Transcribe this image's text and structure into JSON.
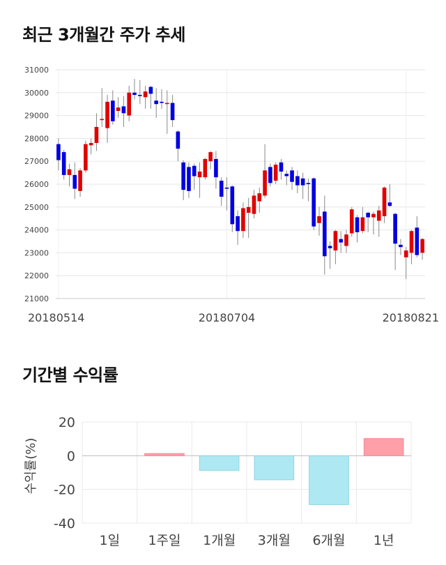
{
  "sections": {
    "price_title": "최근 3개월간 주가 추세",
    "returns_title": "기간별 수익률"
  },
  "chart_data": [
    {
      "type": "candlestick",
      "y_ticks": [
        "31000",
        "30000",
        "29000",
        "28000",
        "27000",
        "26000",
        "25000",
        "24000",
        "23000",
        "22000",
        "21000"
      ],
      "ylim": [
        21000,
        31000
      ],
      "x_ticks": [
        {
          "label": "20180514",
          "index": 0
        },
        {
          "label": "20180704",
          "index": 31
        },
        {
          "label": "20180821",
          "index": 64
        }
      ],
      "up_color": "#e00000",
      "down_color": "#0000e0",
      "candles": [
        [
          27750,
          27050,
          28000,
          26600
        ],
        [
          27400,
          26400,
          27500,
          26200
        ],
        [
          26400,
          26650,
          26900,
          25900
        ],
        [
          26400,
          25800,
          26950,
          25350
        ],
        [
          25700,
          26600,
          26700,
          25450
        ],
        [
          26600,
          27750,
          27900,
          26500
        ],
        [
          27700,
          27800,
          28000,
          27300
        ],
        [
          27800,
          28500,
          29100,
          27450
        ],
        [
          28800,
          28850,
          30200,
          28500
        ],
        [
          28450,
          29600,
          29900,
          27800
        ],
        [
          29650,
          28750,
          30100,
          28600
        ],
        [
          29200,
          29350,
          29800,
          28900
        ],
        [
          29400,
          29100,
          29850,
          28500
        ],
        [
          29000,
          30000,
          30300,
          28750
        ],
        [
          30000,
          29900,
          30600,
          29700
        ],
        [
          29900,
          29850,
          30550,
          29500
        ],
        [
          29800,
          30050,
          30300,
          29300
        ],
        [
          30250,
          29950,
          30300,
          29300
        ],
        [
          29650,
          29500,
          30200,
          28900
        ],
        [
          29600,
          29550,
          30150,
          29300
        ],
        [
          29500,
          29550,
          30100,
          28200
        ],
        [
          29550,
          28800,
          29900,
          28500
        ],
        [
          28300,
          27550,
          28350,
          27000
        ],
        [
          26950,
          25750,
          27050,
          25300
        ],
        [
          26750,
          25700,
          26950,
          25400
        ],
        [
          26800,
          26350,
          26900,
          25750
        ],
        [
          26300,
          26550,
          26950,
          25400
        ],
        [
          26300,
          27100,
          27150,
          26200
        ],
        [
          27000,
          27400,
          27450,
          26650
        ],
        [
          27100,
          26300,
          27450,
          25800
        ],
        [
          26150,
          25450,
          26300,
          25050
        ],
        [
          25850,
          25800,
          26300,
          24850
        ],
        [
          25900,
          24250,
          25950,
          23900
        ],
        [
          24600,
          23950,
          24850,
          23350
        ],
        [
          23950,
          24950,
          25200,
          23650
        ],
        [
          24750,
          25000,
          25400,
          23650
        ],
        [
          24700,
          25500,
          25750,
          24500
        ],
        [
          25250,
          25600,
          25850,
          24750
        ],
        [
          25500,
          26600,
          27750,
          25400
        ],
        [
          26750,
          26050,
          26900,
          25900
        ],
        [
          26150,
          26850,
          26950,
          26000
        ],
        [
          26950,
          26550,
          27100,
          26200
        ],
        [
          26450,
          26350,
          26600,
          25950
        ],
        [
          26600,
          26100,
          26750,
          25750
        ],
        [
          26350,
          25950,
          26600,
          25600
        ],
        [
          26250,
          25950,
          26500,
          25350
        ],
        [
          26050,
          26000,
          26250,
          25250
        ],
        [
          26250,
          24150,
          26300,
          24000
        ],
        [
          24300,
          24600,
          25000,
          23750
        ],
        [
          24800,
          22850,
          25500,
          22050
        ],
        [
          23300,
          23200,
          23500,
          22300
        ],
        [
          23100,
          23950,
          24000,
          22500
        ],
        [
          23600,
          23450,
          23950,
          23000
        ],
        [
          23300,
          23800,
          24000,
          23000
        ],
        [
          23850,
          24900,
          25000,
          23700
        ],
        [
          24550,
          23900,
          24650,
          23450
        ],
        [
          23950,
          24550,
          25000,
          23850
        ],
        [
          24750,
          24550,
          24800,
          23900
        ],
        [
          24550,
          24700,
          24800,
          23800
        ],
        [
          24400,
          24850,
          25050,
          23700
        ],
        [
          24600,
          25850,
          25900,
          24300
        ],
        [
          25200,
          25050,
          26000,
          25000
        ],
        [
          24700,
          23400,
          24750,
          22250
        ],
        [
          23350,
          23250,
          23600,
          22900
        ],
        [
          22800,
          23100,
          23250,
          21850
        ],
        [
          23000,
          23950,
          24000,
          22500
        ],
        [
          24100,
          22900,
          24600,
          22800
        ],
        [
          23000,
          23600,
          23650,
          22700
        ]
      ]
    },
    {
      "type": "bar",
      "ylabel": "수익률(%)",
      "ylim": [
        -40,
        20
      ],
      "y_ticks": [
        "20",
        "0",
        "-20",
        "-40"
      ],
      "categories": [
        "1일",
        "1주일",
        "1개월",
        "3개월",
        "6개월",
        "1년"
      ],
      "values": [
        0,
        1.3,
        -8.7,
        -14.3,
        -29.0,
        10.2
      ],
      "positive_color": "#ff9fa8",
      "negative_color": "#aee8f2"
    }
  ]
}
